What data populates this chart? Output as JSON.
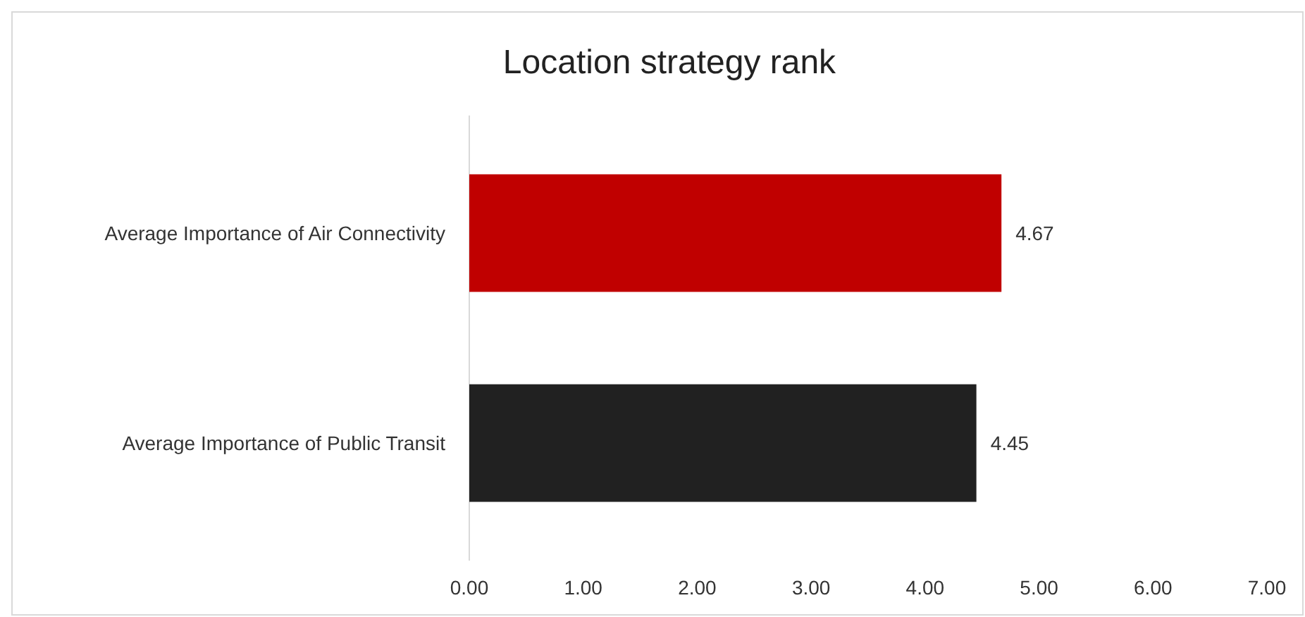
{
  "chart_data": {
    "type": "bar",
    "orientation": "horizontal",
    "title": "Location strategy rank",
    "categories": [
      "Average Importance of Air Connectivity",
      "Average Importance of Public Transit"
    ],
    "values": [
      4.67,
      4.45
    ],
    "colors": [
      "#c00000",
      "#212121"
    ],
    "xlim": [
      0,
      7
    ],
    "xticks": [
      {
        "value": 0,
        "label": "0.00"
      },
      {
        "value": 1,
        "label": "1.00"
      },
      {
        "value": 2,
        "label": "2.00"
      },
      {
        "value": 3,
        "label": "3.00"
      },
      {
        "value": 4,
        "label": "4.00"
      },
      {
        "value": 5,
        "label": "5.00"
      },
      {
        "value": 6,
        "label": "6.00"
      },
      {
        "value": 7,
        "label": "7.00"
      }
    ],
    "data_labels": true
  }
}
